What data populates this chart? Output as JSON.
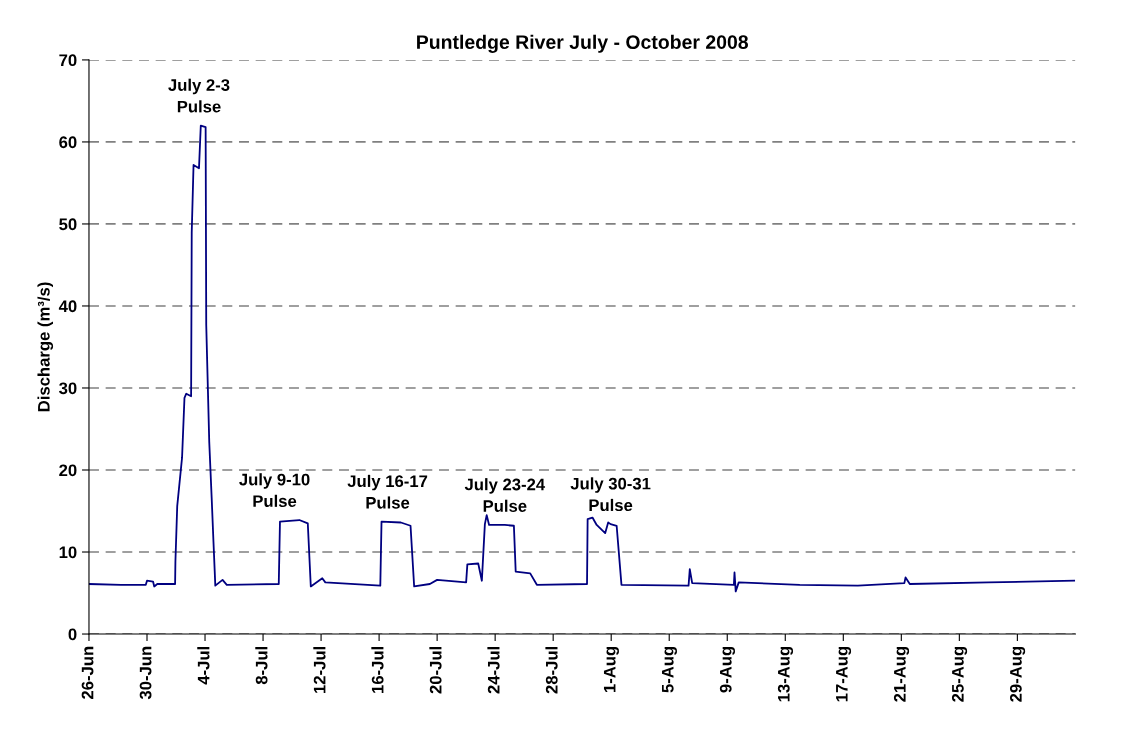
{
  "chart_data": {
    "type": "line",
    "title": "Puntledge River July - October 2008",
    "ylabel": "Discharge (m³/s)",
    "x": [
      "2008-06-26T00:00",
      "2008-06-28T05:00",
      "2008-06-29T22:00",
      "2008-06-30T00:00",
      "2008-06-30T10:00",
      "2008-06-30T12:00",
      "2008-06-30T17:00",
      "2008-07-01T22:30",
      "2008-07-01T23:00",
      "2008-07-02T02:00",
      "2008-07-02T10:00",
      "2008-07-02T14:00",
      "2008-07-02T17:00",
      "2008-07-03T01:00",
      "2008-07-03T02:00",
      "2008-07-03T05:00",
      "2008-07-03T14:00",
      "2008-07-03T17:00",
      "2008-07-04T01:00",
      "2008-07-04T02:00",
      "2008-07-04T07:00",
      "2008-07-04T11:00",
      "2008-07-04T14:00",
      "2008-07-04T16:00",
      "2008-07-04T17:00",
      "2008-07-05T05:00",
      "2008-07-05T12:00",
      "2008-07-09T02:00",
      "2008-07-09T04:00",
      "2008-07-10T12:00",
      "2008-07-11T02:00",
      "2008-07-11T07:00",
      "2008-07-12T02:00",
      "2008-07-12T07:00",
      "2008-07-16T02:00",
      "2008-07-16T04:00",
      "2008-07-17T12:00",
      "2008-07-18T04:00",
      "2008-07-18T10:00",
      "2008-07-19T12:00",
      "2008-07-20T00:00",
      "2008-07-22T00:00",
      "2008-07-22T02:00",
      "2008-07-22T20:00",
      "2008-07-23T02:00",
      "2008-07-23T07:00",
      "2008-07-23T10:00",
      "2008-07-23T14:00",
      "2008-07-24T16:00",
      "2008-07-25T07:00",
      "2008-07-25T10:00",
      "2008-07-26T10:00",
      "2008-07-26T21:00",
      "2008-07-30T08:00",
      "2008-07-30T09:00",
      "2008-07-30T17:00",
      "2008-07-31T00:00",
      "2008-07-31T14:00",
      "2008-07-31T19:00",
      "2008-07-31T23:00",
      "2008-08-01T09:00",
      "2008-08-01T17:00",
      "2008-08-06T08:00",
      "2008-08-06T10:00",
      "2008-08-06T14:00",
      "2008-08-09T11:00",
      "2008-08-09T12:00",
      "2008-08-09T14:00",
      "2008-08-09T19:00",
      "2008-08-14T00:00",
      "2008-08-18T00:00",
      "2008-08-21T05:00",
      "2008-08-21T07:00",
      "2008-08-21T14:00",
      "2008-08-27T00:00",
      "2008-09-01T22:00"
    ],
    "series": [
      {
        "color": "#000080",
        "values": [
          6.1,
          6.0,
          6.0,
          6.5,
          6.4,
          5.8,
          6.1,
          6.1,
          8.8,
          15.6,
          21.5,
          28.8,
          29.3,
          29.0,
          49,
          57.2,
          56.8,
          62.0,
          61.8,
          37.7,
          23.4,
          16.6,
          11.2,
          7.7,
          5.9,
          6.6,
          6.0,
          6.1,
          13.7,
          13.9,
          13.5,
          5.8,
          6.8,
          6.3,
          5.9,
          13.7,
          13.6,
          13.2,
          5.8,
          6.1,
          6.6,
          6.3,
          8.5,
          8.6,
          6.5,
          13.4,
          14.5,
          13.3,
          13.3,
          13.2,
          7.6,
          7.4,
          6.0,
          6.1,
          14.0,
          14.2,
          13.3,
          12.3,
          13.6,
          13.4,
          13.2,
          6.0,
          5.9,
          7.9,
          6.2,
          6.0,
          7.5,
          5.2,
          6.3,
          6.0,
          5.9,
          6.2,
          6.9,
          6.1,
          6.3,
          6.5
        ]
      }
    ],
    "xlim": [
      "2008-06-26",
      "2008-09-02"
    ],
    "xticks": [
      {
        "value": "2008-06-26",
        "label": "26-Jun"
      },
      {
        "value": "2008-06-30",
        "label": "30-Jun"
      },
      {
        "value": "2008-07-04",
        "label": "4-Jul"
      },
      {
        "value": "2008-07-08",
        "label": "8-Jul"
      },
      {
        "value": "2008-07-12",
        "label": "12-Jul"
      },
      {
        "value": "2008-07-16",
        "label": "16-Jul"
      },
      {
        "value": "2008-07-20",
        "label": "20-Jul"
      },
      {
        "value": "2008-07-24",
        "label": "24-Jul"
      },
      {
        "value": "2008-07-28",
        "label": "28-Jul"
      },
      {
        "value": "2008-08-01",
        "label": "1-Aug"
      },
      {
        "value": "2008-08-05",
        "label": "5-Aug"
      },
      {
        "value": "2008-08-09",
        "label": "9-Aug"
      },
      {
        "value": "2008-08-13",
        "label": "13-Aug"
      },
      {
        "value": "2008-08-17",
        "label": "17-Aug"
      },
      {
        "value": "2008-08-21",
        "label": "21-Aug"
      },
      {
        "value": "2008-08-25",
        "label": "25-Aug"
      },
      {
        "value": "2008-08-29",
        "label": "29-Aug"
      }
    ],
    "ylim": [
      0,
      70
    ],
    "yticks": [
      0,
      10,
      20,
      30,
      40,
      50,
      60,
      70
    ],
    "grid": "y",
    "line_style": "solid",
    "legend": false,
    "annotations": [
      {
        "text": "July 2-3\nPulse",
        "x": "2008-07-03T14:00",
        "y": 62
      },
      {
        "text": "July 9-10\nPulse",
        "x": "2008-07-08T19:00",
        "y": 13.9
      },
      {
        "text": "July 16-17\nPulse",
        "x": "2008-07-16T14:00",
        "y": 13.7
      },
      {
        "text": "July 23-24\nPulse",
        "x": "2008-07-24T16:00",
        "y": 13.3
      },
      {
        "text": "July 30-31\nPulse",
        "x": "2008-07-31T23:00",
        "y": 13.4
      }
    ]
  }
}
